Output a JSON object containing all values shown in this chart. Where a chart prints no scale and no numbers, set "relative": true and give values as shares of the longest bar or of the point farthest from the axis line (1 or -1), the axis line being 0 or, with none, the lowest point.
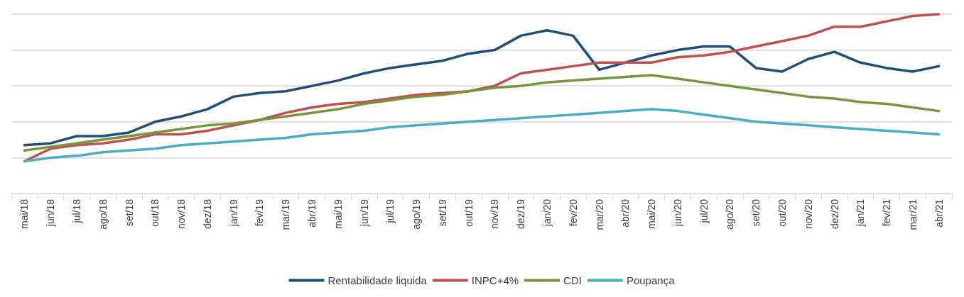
{
  "chart_data": {
    "type": "line",
    "relative": true,
    "grid": "y",
    "legend": "bottom",
    "marker": "none",
    "line_style": "solid",
    "categories": [
      "mai/18",
      "jun/18",
      "jul/18",
      "ago/18",
      "set/18",
      "out/18",
      "nov/18",
      "dez/18",
      "jan/19",
      "fev/19",
      "mar/19",
      "abr/19",
      "mai/19",
      "jun/19",
      "jul/19",
      "ago/19",
      "set/19",
      "out/19",
      "nov/19",
      "dez/19",
      "jan/20",
      "fev/20",
      "mar/20",
      "abr/20",
      "mai/20",
      "jun/20",
      "jul/20",
      "ago/20",
      "set/20",
      "out/20",
      "nov/20",
      "dez/20",
      "jan/21",
      "fev/21",
      "mar/21",
      "abr/21"
    ],
    "series": [
      {
        "name": "Rentabilidade liquida",
        "color": "#1f4e79",
        "values": [
          0.27,
          0.28,
          0.32,
          0.32,
          0.34,
          0.4,
          0.43,
          0.47,
          0.54,
          0.56,
          0.57,
          0.6,
          0.63,
          0.67,
          0.7,
          0.72,
          0.74,
          0.78,
          0.8,
          0.88,
          0.91,
          0.88,
          0.69,
          0.73,
          0.77,
          0.8,
          0.82,
          0.82,
          0.7,
          0.68,
          0.75,
          0.79,
          0.73,
          0.7,
          0.68,
          0.71
        ]
      },
      {
        "name": "INPC+4%",
        "color": "#c0504d",
        "values": [
          0.18,
          0.25,
          0.27,
          0.28,
          0.3,
          0.33,
          0.33,
          0.35,
          0.38,
          0.41,
          0.45,
          0.48,
          0.5,
          0.51,
          0.53,
          0.55,
          0.56,
          0.57,
          0.6,
          0.67,
          0.69,
          0.71,
          0.73,
          0.73,
          0.73,
          0.76,
          0.77,
          0.79,
          0.82,
          0.85,
          0.88,
          0.93,
          0.93,
          0.96,
          0.99,
          1
        ]
      },
      {
        "name": "CDI",
        "color": "#77963b",
        "values": [
          0.24,
          0.26,
          0.28,
          0.3,
          0.32,
          0.34,
          0.36,
          0.38,
          0.39,
          0.41,
          0.43,
          0.45,
          0.47,
          0.5,
          0.52,
          0.54,
          0.55,
          0.57,
          0.59,
          0.6,
          0.62,
          0.63,
          0.64,
          0.65,
          0.66,
          0.64,
          0.62,
          0.6,
          0.58,
          0.56,
          0.54,
          0.53,
          0.51,
          0.5,
          0.48,
          0.46
        ]
      },
      {
        "name": "Poupança",
        "color": "#4bacc6",
        "values": [
          0.18,
          0.2,
          0.21,
          0.23,
          0.24,
          0.25,
          0.27,
          0.28,
          0.29,
          0.3,
          0.31,
          0.33,
          0.34,
          0.35,
          0.37,
          0.38,
          0.39,
          0.4,
          0.41,
          0.42,
          0.43,
          0.44,
          0.45,
          0.46,
          0.47,
          0.46,
          0.44,
          0.42,
          0.4,
          0.39,
          0.38,
          0.37,
          0.36,
          0.35,
          0.34,
          0.33
        ]
      }
    ]
  }
}
